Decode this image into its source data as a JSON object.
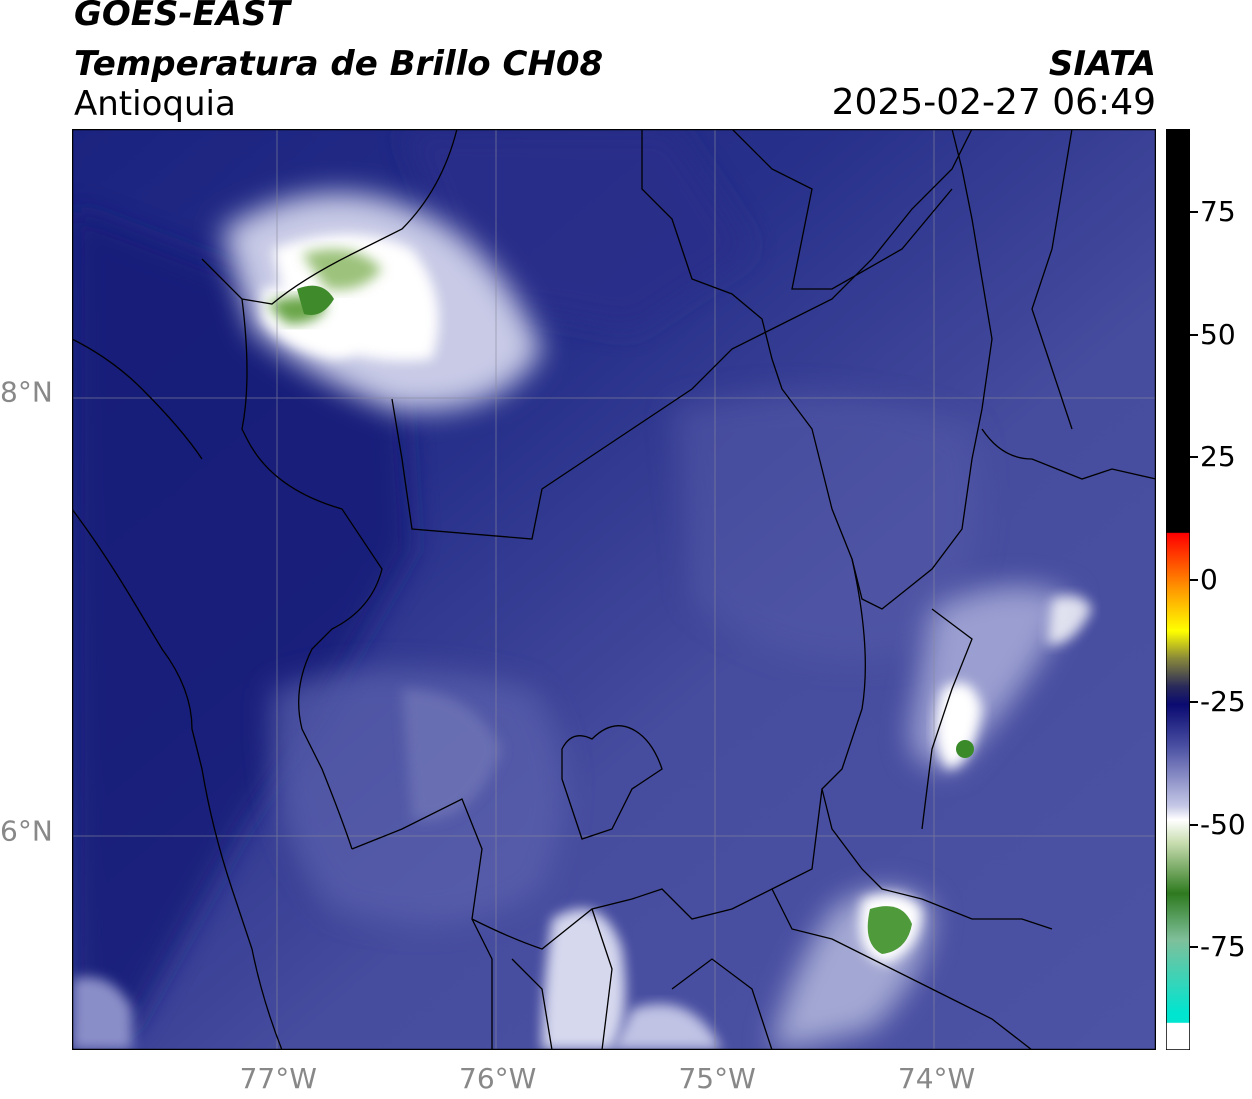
{
  "header": {
    "satellite": "GOES-EAST",
    "product": "Temperatura de Brillo CH08",
    "region": "Antioquia",
    "agency": "SIATA",
    "datetime": "2025-02-27 06:49"
  },
  "map": {
    "lon_labels": [
      "77°W",
      "76°W",
      "75°W",
      "74°W"
    ],
    "lon_values": [
      -77,
      -76,
      -75,
      -74
    ],
    "lat_labels": [
      "8°N",
      "6°N"
    ],
    "lat_values": [
      8,
      6
    ],
    "extent": {
      "lon_min": -77.94,
      "lon_max": -73.0,
      "lat_min": 5.0,
      "lat_max": 9.2
    }
  },
  "colorbar": {
    "range": [
      -96,
      92
    ],
    "ticks": [
      {
        "value": 75,
        "label": "75"
      },
      {
        "value": 50,
        "label": "50"
      },
      {
        "value": 25,
        "label": "25"
      },
      {
        "value": 0,
        "label": "0"
      },
      {
        "value": -25,
        "label": "-25"
      },
      {
        "value": -50,
        "label": "-50"
      },
      {
        "value": -75,
        "label": "-75"
      }
    ],
    "colors": {
      "black": "#000000",
      "red": "#ff0000",
      "orange": "#ff9900",
      "yellow": "#ffff00",
      "olive": "#88883a",
      "navy": "#0a0a70",
      "blue": "#4a4fa2",
      "white": "#ffffff",
      "green": "#2e7a1f",
      "cyan": "#00e5d0"
    }
  }
}
